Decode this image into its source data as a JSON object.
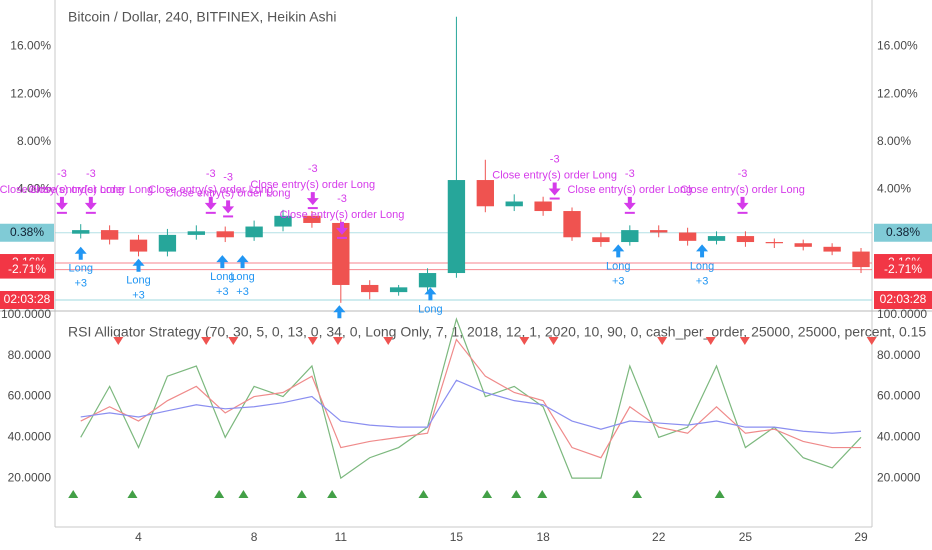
{
  "chart_data": [
    {
      "type": "candlestick",
      "title": "Bitcoin / Dollar, 240, BITFINEX, Heikin Ashi",
      "x": [
        2,
        3,
        4,
        5,
        6,
        7,
        8,
        9,
        10,
        11,
        12,
        13,
        14,
        15,
        16,
        17,
        18,
        19,
        20,
        21,
        22,
        23,
        24,
        25,
        26,
        27,
        28,
        29
      ],
      "open": [
        0.3,
        0.6,
        -0.2,
        -1.2,
        0.2,
        0.5,
        0.0,
        0.9,
        1.8,
        1.2,
        -4.0,
        -4.6,
        -4.2,
        -3.0,
        4.8,
        2.6,
        3.0,
        2.2,
        0.0,
        -0.4,
        0.6,
        0.4,
        -0.3,
        0.1,
        -0.4,
        -0.5,
        -0.8,
        -1.2
      ],
      "close": [
        0.6,
        -0.2,
        -1.2,
        0.2,
        0.5,
        0.0,
        0.9,
        1.8,
        1.2,
        -4.0,
        -4.6,
        -4.2,
        -3.0,
        4.8,
        2.6,
        3.0,
        2.2,
        0.0,
        -0.4,
        0.6,
        0.4,
        -0.3,
        0.1,
        -0.4,
        -0.5,
        -0.8,
        -1.2,
        -2.5
      ],
      "high": [
        1.1,
        1.0,
        0.2,
        0.7,
        1.0,
        0.9,
        1.4,
        2.3,
        2.2,
        1.5,
        -3.6,
        -4.0,
        -2.6,
        18.5,
        6.5,
        3.6,
        3.4,
        2.5,
        0.4,
        1.0,
        1.0,
        0.8,
        0.5,
        0.5,
        -0.1,
        -0.2,
        -0.5,
        -0.9
      ],
      "low": [
        -0.1,
        -0.6,
        -1.6,
        -1.6,
        -0.2,
        -0.4,
        -0.3,
        0.5,
        0.8,
        -5.5,
        -5.2,
        -4.9,
        -4.5,
        -3.4,
        2.1,
        2.2,
        1.8,
        -0.3,
        -0.8,
        -0.7,
        0.0,
        -0.7,
        -0.6,
        -0.8,
        -0.9,
        -1.1,
        -1.5,
        -3.0
      ],
      "up_color": "#26a69a",
      "down_color": "#ef5350",
      "xlim": [
        1.11,
        29.38
      ],
      "ylim": [
        -6.1,
        19.9
      ],
      "yticks": [
        {
          "value": 4,
          "label": "4.00%"
        },
        {
          "value": 8,
          "label": "8.00%"
        },
        {
          "value": 12,
          "label": "12.00%"
        },
        {
          "value": 16,
          "label": "16.00%"
        }
      ],
      "price_labels": [
        {
          "value": 0.38,
          "label": "0.38%",
          "color": "#80cbd6"
        },
        {
          "value": -2.16,
          "label": "-2.16%",
          "color": "#f23645"
        },
        {
          "value": -2.71,
          "label": "-2.71%",
          "color": "#f23645"
        }
      ],
      "countdown": "02:03:28",
      "long_color": "#2196f3",
      "exit_color": "#d53bea",
      "long_signals": [
        {
          "x": 2.0,
          "price": -0.8,
          "label": "Long",
          "qty": "+3"
        },
        {
          "x": 4.0,
          "price": -1.8,
          "label": "Long",
          "qty": "+3"
        },
        {
          "x": 6.9,
          "price": -1.5,
          "label": "Long",
          "qty": "+3"
        },
        {
          "x": 7.6,
          "price": -1.5,
          "label": "Long",
          "qty": "+3"
        },
        {
          "x": 10.95,
          "price": -5.7
        },
        {
          "x": 14.1,
          "price": -4.2,
          "label": "Long"
        },
        {
          "x": 20.6,
          "price": -0.6,
          "label": "Long",
          "qty": "+3"
        },
        {
          "x": 23.5,
          "price": -0.6,
          "label": "Long",
          "qty": "+3"
        }
      ],
      "exit_signals": [
        {
          "x": 1.35,
          "price": 2.3,
          "label": "Close entry(s) order Long",
          "qty": "-3"
        },
        {
          "x": 2.35,
          "price": 2.3,
          "label": "Close entry(s) order Long",
          "qty": "-3"
        },
        {
          "x": 6.5,
          "price": 2.3,
          "label": "Close entry(s) order Long",
          "qty": "-3"
        },
        {
          "x": 7.1,
          "price": 2.0,
          "label": "Close entry(s) order Long",
          "qty": "-3"
        },
        {
          "x": 10.03,
          "price": 2.7,
          "label": "Close entry(s) order Long",
          "qty": "-3"
        },
        {
          "x": 11.04,
          "price": 0.2,
          "label": "Close entry(s) order Long",
          "qty": "-3"
        },
        {
          "x": 18.4,
          "price": 3.5,
          "label": "Close entry(s) order Long",
          "qty": "-3"
        },
        {
          "x": 21.0,
          "price": 2.3,
          "label": "Close entry(s) order Long",
          "qty": "-3"
        },
        {
          "x": 24.9,
          "price": 2.3,
          "label": "Close entry(s) order Long",
          "qty": "-3"
        }
      ]
    },
    {
      "type": "line",
      "title": "RSI Alligator Strategy (70, 30, 5, 0, 13, 0, 34, 0, Long Only, 7, 1, 2018, 12, 1, 2020, 10, 90, 0, cash_per_order, 25000, 25000, percent, 0.15",
      "x": [
        2,
        3,
        4,
        5,
        6,
        7,
        8,
        9,
        10,
        11,
        12,
        13,
        14,
        15,
        16,
        17,
        18,
        19,
        20,
        21,
        22,
        23,
        24,
        25,
        26,
        27,
        28,
        29
      ],
      "series": [
        {
          "color": "#7cb87e",
          "values": [
            40,
            65,
            35,
            70,
            75,
            40,
            65,
            60,
            75,
            20,
            30,
            35,
            45,
            98,
            60,
            65,
            55,
            20,
            20,
            75,
            40,
            45,
            75,
            35,
            45,
            30,
            25,
            40
          ]
        },
        {
          "color": "#ef8a8a",
          "values": [
            48,
            55,
            48,
            58,
            65,
            52,
            60,
            62,
            70,
            35,
            38,
            40,
            42,
            88,
            70,
            62,
            58,
            35,
            30,
            55,
            45,
            42,
            55,
            42,
            44,
            38,
            35,
            35
          ]
        },
        {
          "color": "#8a8ef0",
          "values": [
            50,
            52,
            50,
            53,
            56,
            54,
            55,
            57,
            60,
            48,
            46,
            45,
            45,
            68,
            62,
            58,
            56,
            48,
            44,
            48,
            47,
            46,
            48,
            45,
            45,
            43,
            42,
            43
          ]
        }
      ],
      "xlim": [
        1.11,
        29.38
      ],
      "ylim": [
        -3,
        101
      ],
      "xticks": [
        4,
        8,
        11,
        15,
        18,
        22,
        25,
        29
      ],
      "yticks": [
        {
          "value": 20,
          "label": "20.0000"
        },
        {
          "value": 40,
          "label": "40.0000"
        },
        {
          "value": 60,
          "label": "60.0000"
        },
        {
          "value": 80,
          "label": "80.0000"
        },
        {
          "value": 100,
          "label": "100.0000"
        }
      ],
      "sell_color": "#ef5350",
      "buy_color": "#43a047",
      "sell_signals_x": [
        3.3,
        6.34,
        7.28,
        10.03,
        10.9,
        12.64,
        17.35,
        18.36,
        22.12,
        23.8,
        24.98,
        29.37
      ],
      "buy_signals_x": [
        1.74,
        3.79,
        6.79,
        7.63,
        9.65,
        10.7,
        13.86,
        16.06,
        17.07,
        17.97,
        21.25,
        24.11
      ]
    }
  ]
}
